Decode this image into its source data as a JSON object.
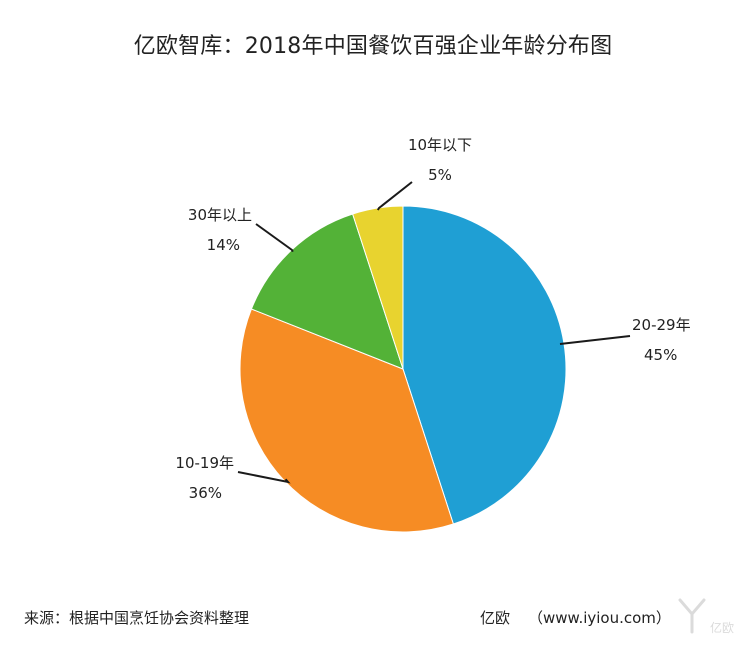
{
  "title": "亿欧智库：2018年中国餐饮百强企业年龄分布图",
  "footer": {
    "source": "来源：根据中国烹饪协会资料整理",
    "brand": "亿欧",
    "url": "（www.iyiou.com）"
  },
  "watermark_text": "亿欧",
  "chart_data": {
    "type": "pie",
    "title": "2018年中国餐饮百强企业年龄分布图",
    "start": "12 o'clock",
    "direction": "clockwise",
    "slices": [
      {
        "label": "20-29年",
        "value": 45,
        "display": "45%",
        "color": "#1f9fd4"
      },
      {
        "label": "10-19年",
        "value": 36,
        "display": "36%",
        "color": "#f68c24"
      },
      {
        "label": "30年以上",
        "value": 14,
        "display": "14%",
        "color": "#53b237"
      },
      {
        "label": "10年以下",
        "value": 5,
        "display": "5%",
        "color": "#e8d32f"
      }
    ]
  }
}
